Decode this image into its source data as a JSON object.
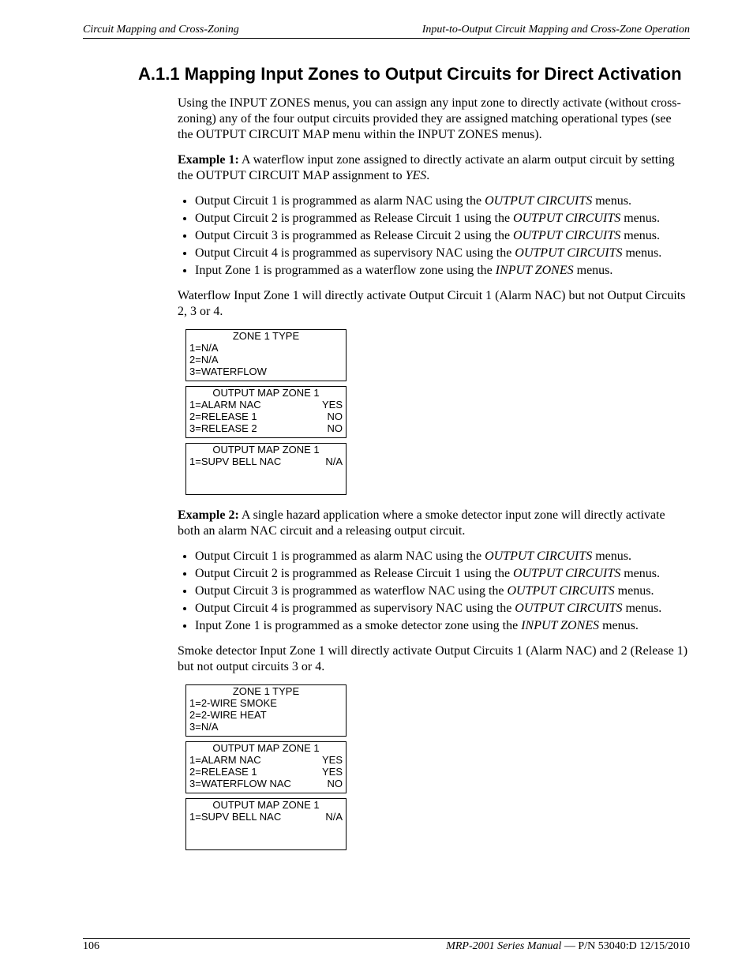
{
  "header": {
    "left": "Circuit Mapping and Cross-Zoning",
    "right": "Input-to-Output Circuit Mapping and Cross-Zone Operation"
  },
  "title": "A.1.1  Mapping Input Zones to Output Circuits for Direct Activation",
  "intro": "Using the INPUT ZONES menus, you can assign any input zone to directly activate (without cross-zoning) any of the four output circuits provided they are assigned matching operational types (see the OUTPUT CIRCUIT MAP menu within the INPUT ZONES menus).",
  "ex1_label": "Example 1:",
  "ex1_text": " A waterflow input zone assigned to directly activate an alarm output circuit by setting the OUTPUT CIRCUIT MAP assignment to ",
  "ex1_yes": "YES",
  "ex1_period": ".",
  "ex1_bullets": [
    {
      "pre": "Output Circuit 1 is programmed as alarm NAC using the ",
      "em": "OUTPUT CIRCUITS",
      "post": " menus."
    },
    {
      "pre": "Output Circuit 2 is programmed as Release Circuit 1 using the ",
      "em": "OUTPUT CIRCUITS",
      "post": " menus."
    },
    {
      "pre": "Output Circuit 3 is programmed as Release Circuit 2 using the ",
      "em": "OUTPUT CIRCUITS",
      "post": " menus."
    },
    {
      "pre": "Output Circuit 4 is programmed as supervisory NAC using the ",
      "em": "OUTPUT CIRCUITS",
      "post": " menus."
    },
    {
      "pre": "Input Zone 1 is programmed as a waterflow zone using the ",
      "em": "INPUT ZONES",
      "post": " menus."
    }
  ],
  "ex1_conclude": "Waterflow Input Zone 1 will directly activate Output Circuit 1 (Alarm NAC) but not Output Circuits 2, 3 or 4.",
  "screens1": [
    {
      "title": "ZONE 1 TYPE",
      "rows": [
        [
          "1=N/A",
          ""
        ],
        [
          "2=N/A",
          ""
        ],
        [
          "3=WATERFLOW",
          ""
        ]
      ]
    },
    {
      "title": "OUTPUT MAP ZONE 1",
      "rows": [
        [
          "1=ALARM NAC",
          "YES"
        ],
        [
          "2=RELEASE 1",
          "NO"
        ],
        [
          "3=RELEASE 2",
          "NO"
        ]
      ]
    },
    {
      "title": "OUTPUT MAP ZONE 1",
      "rows": [
        [
          "1=SUPV BELL NAC",
          "N/A"
        ]
      ]
    }
  ],
  "ex2_label": "Example 2:",
  "ex2_text": " A single hazard application where a smoke detector input zone will directly activate both an alarm NAC circuit and a releasing output circuit.",
  "ex2_bullets": [
    {
      "pre": "Output Circuit 1 is programmed as alarm NAC using the ",
      "em": "OUTPUT CIRCUITS",
      "post": " menus."
    },
    {
      "pre": "Output Circuit 2 is programmed as Release Circuit 1 using the ",
      "em": "OUTPUT CIRCUITS",
      "post": " menus."
    },
    {
      "pre": "Output Circuit 3 is programmed as waterflow NAC using the ",
      "em": "OUTPUT CIRCUITS",
      "post": " menus."
    },
    {
      "pre": "Output Circuit 4 is programmed as supervisory NAC using the ",
      "em": "OUTPUT CIRCUITS",
      "post": " menus."
    },
    {
      "pre": "Input Zone 1 is programmed as a smoke detector zone using the ",
      "em": "INPUT ZONES",
      "post": " menus."
    }
  ],
  "ex2_conclude": "Smoke detector Input Zone 1 will directly activate Output Circuits 1 (Alarm NAC) and 2 (Release 1) but not output circuits 3 or 4.",
  "screens2": [
    {
      "title": "ZONE 1 TYPE",
      "rows": [
        [
          "1=2-WIRE SMOKE",
          ""
        ],
        [
          "2=2-WIRE HEAT",
          ""
        ],
        [
          "3=N/A",
          ""
        ]
      ]
    },
    {
      "title": "OUTPUT MAP ZONE 1",
      "rows": [
        [
          "1=ALARM NAC",
          "YES"
        ],
        [
          "2=RELEASE 1",
          "YES"
        ],
        [
          "3=WATERFLOW NAC",
          "NO"
        ]
      ]
    },
    {
      "title": "OUTPUT MAP ZONE 1",
      "rows": [
        [
          "1=SUPV BELL NAC",
          "N/A"
        ]
      ]
    }
  ],
  "footer": {
    "page": "106",
    "manual": "MRP-2001 Series Manual",
    "sep": " — ",
    "pn": "P/N 53040:D  12/15/2010"
  }
}
